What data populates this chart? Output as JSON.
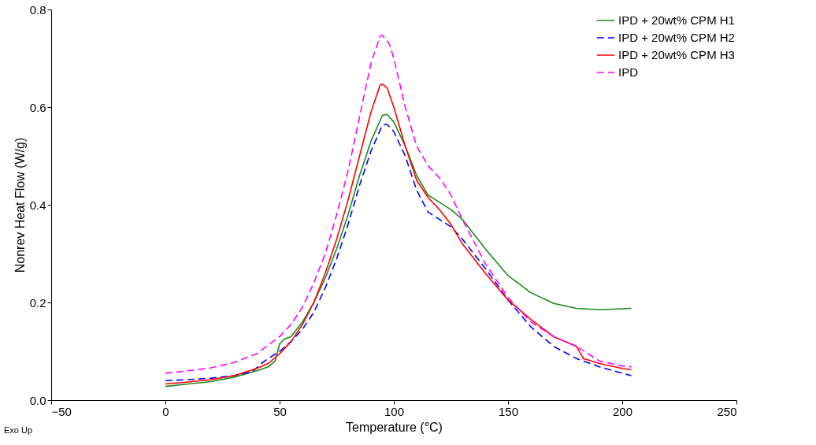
{
  "chart_data": {
    "type": "line",
    "xlabel": "Temperature (°C)",
    "ylabel": "Nonrev Heat Flow (W/g)",
    "xlim": [
      -50,
      250
    ],
    "xticks": [
      -50,
      0,
      50,
      100,
      150,
      200,
      250
    ],
    "ylim": [
      0,
      0.8
    ],
    "yticks": [
      {
        "value": 0,
        "label": "0.0"
      },
      {
        "value": 0.2,
        "label": "0.2"
      },
      {
        "value": 0.4,
        "label": "0.4"
      },
      {
        "value": 0.6,
        "label": "0.6"
      },
      {
        "value": 0.8,
        "label": "0.8"
      }
    ],
    "grid": false,
    "legend": "top right",
    "marker": "none",
    "annotations": [
      "Exo Up"
    ],
    "series": [
      {
        "name": "IPD + 20wt% CPM H1",
        "color": "#1a8a1a",
        "line_style": "solid",
        "x": [
          0,
          10,
          20,
          30,
          40,
          45,
          48,
          50,
          52,
          55,
          60,
          65,
          70,
          75,
          80,
          85,
          90,
          95,
          97,
          100,
          105,
          110,
          115,
          120,
          125,
          130,
          140,
          150,
          160,
          170,
          180,
          190,
          200,
          204
        ],
        "values": [
          0.028,
          0.033,
          0.038,
          0.047,
          0.06,
          0.068,
          0.08,
          0.115,
          0.125,
          0.13,
          0.16,
          0.2,
          0.25,
          0.31,
          0.38,
          0.46,
          0.53,
          0.583,
          0.585,
          0.57,
          0.52,
          0.46,
          0.42,
          0.405,
          0.39,
          0.37,
          0.31,
          0.255,
          0.22,
          0.198,
          0.188,
          0.185,
          0.187,
          0.188
        ]
      },
      {
        "name": "IPD + 20wt% CPM H2",
        "color": "#0000ff",
        "line_style": "dashed",
        "x": [
          0,
          10,
          20,
          30,
          38,
          42,
          45,
          50,
          55,
          60,
          65,
          70,
          75,
          80,
          85,
          90,
          95,
          97,
          100,
          105,
          110,
          115,
          120,
          125,
          130,
          140,
          150,
          160,
          170,
          180,
          190,
          200,
          204
        ],
        "values": [
          0.04,
          0.042,
          0.045,
          0.05,
          0.058,
          0.075,
          0.085,
          0.1,
          0.12,
          0.145,
          0.18,
          0.23,
          0.29,
          0.36,
          0.44,
          0.51,
          0.563,
          0.565,
          0.55,
          0.5,
          0.43,
          0.385,
          0.37,
          0.355,
          0.33,
          0.27,
          0.205,
          0.15,
          0.11,
          0.085,
          0.068,
          0.055,
          0.05
        ]
      },
      {
        "name": "IPD + 20wt% CPM H3",
        "color": "#ff0000",
        "line_style": "solid",
        "x": [
          0,
          10,
          20,
          30,
          40,
          45,
          50,
          55,
          60,
          65,
          70,
          75,
          80,
          85,
          90,
          94,
          95,
          97,
          100,
          105,
          110,
          115,
          120,
          125,
          130,
          140,
          150,
          160,
          170,
          180,
          183,
          190,
          200,
          204
        ],
        "values": [
          0.033,
          0.037,
          0.042,
          0.05,
          0.065,
          0.075,
          0.095,
          0.12,
          0.155,
          0.2,
          0.26,
          0.33,
          0.41,
          0.5,
          0.59,
          0.645,
          0.647,
          0.64,
          0.6,
          0.52,
          0.45,
          0.415,
          0.39,
          0.36,
          0.32,
          0.26,
          0.205,
          0.165,
          0.13,
          0.11,
          0.085,
          0.075,
          0.065,
          0.062
        ]
      },
      {
        "name": "IPD",
        "color": "#ff00ff",
        "line_style": "dashed",
        "x": [
          0,
          10,
          20,
          30,
          40,
          50,
          55,
          60,
          65,
          70,
          75,
          80,
          85,
          90,
          94,
          95,
          98,
          100,
          105,
          110,
          115,
          120,
          125,
          130,
          140,
          150,
          160,
          170,
          180,
          190,
          200,
          204
        ],
        "values": [
          0.055,
          0.06,
          0.066,
          0.077,
          0.095,
          0.13,
          0.155,
          0.19,
          0.24,
          0.3,
          0.38,
          0.47,
          0.58,
          0.69,
          0.745,
          0.747,
          0.73,
          0.7,
          0.6,
          0.52,
          0.48,
          0.455,
          0.42,
          0.37,
          0.28,
          0.21,
          0.16,
          0.13,
          0.11,
          0.08,
          0.07,
          0.068
        ]
      }
    ]
  }
}
